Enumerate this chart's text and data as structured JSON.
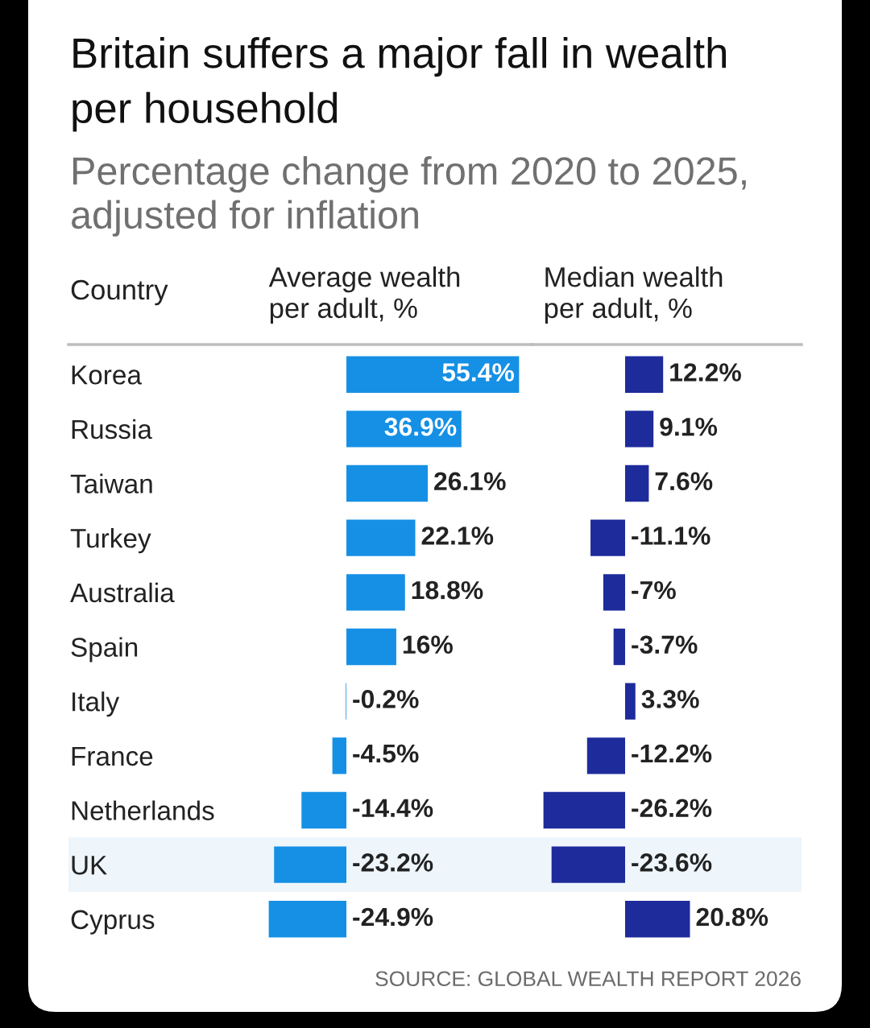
{
  "chart_data": [
    {
      "type": "bar",
      "orientation": "horizontal",
      "title": "Britain suffers a major fall in wealth\nper household",
      "subtitle": "Percentage change from 2020 to 2025,\nadjusted for inflation",
      "ylabel": "Country",
      "xlabel": "Average wealth\nper adult, %",
      "categories": [
        "Korea",
        "Russia",
        "Taiwan",
        "Turkey",
        "Australia",
        "Spain",
        "Italy",
        "France",
        "Netherlands",
        "UK",
        "Cyprus"
      ],
      "values": [
        55.4,
        36.9,
        26.1,
        22.1,
        18.8,
        16,
        -0.2,
        -4.5,
        -14.4,
        -23.2,
        -24.9
      ],
      "value_labels": [
        "55.4%",
        "36.9%",
        "26.1%",
        "22.1%",
        "18.8%",
        "16%",
        "-0.2%",
        "-4.5%",
        "-14.4%",
        "-23.2%",
        "-24.9%"
      ],
      "color": "#1590e5",
      "tick_labels": "y",
      "bands": [
        {
          "axis": "y",
          "from": "UK",
          "to": "UK",
          "color": "#eef6fc"
        }
      ]
    },
    {
      "type": "bar",
      "orientation": "horizontal",
      "xlabel": "Median wealth\nper adult, %",
      "categories": [
        "Korea",
        "Russia",
        "Taiwan",
        "Turkey",
        "Australia",
        "Spain",
        "Italy",
        "France",
        "Netherlands",
        "UK",
        "Cyprus"
      ],
      "values": [
        12.2,
        9.1,
        7.6,
        -11.1,
        -7,
        -3.7,
        3.3,
        -12.2,
        -26.2,
        -23.6,
        20.8
      ],
      "value_labels": [
        "12.2%",
        "9.1%",
        "7.6%",
        "-11.1%",
        "-7%",
        "-3.7%",
        "3.3%",
        "-12.2%",
        "-26.2%",
        "-23.6%",
        "20.8%"
      ],
      "color": "#1e2b9b",
      "tick_labels": false,
      "bands": [
        {
          "axis": "y",
          "from": "UK",
          "to": "UK",
          "color": "#eef6fc"
        }
      ],
      "annotations": [
        "SOURCE: GLOBAL WEALTH REPORT 2026"
      ]
    }
  ]
}
